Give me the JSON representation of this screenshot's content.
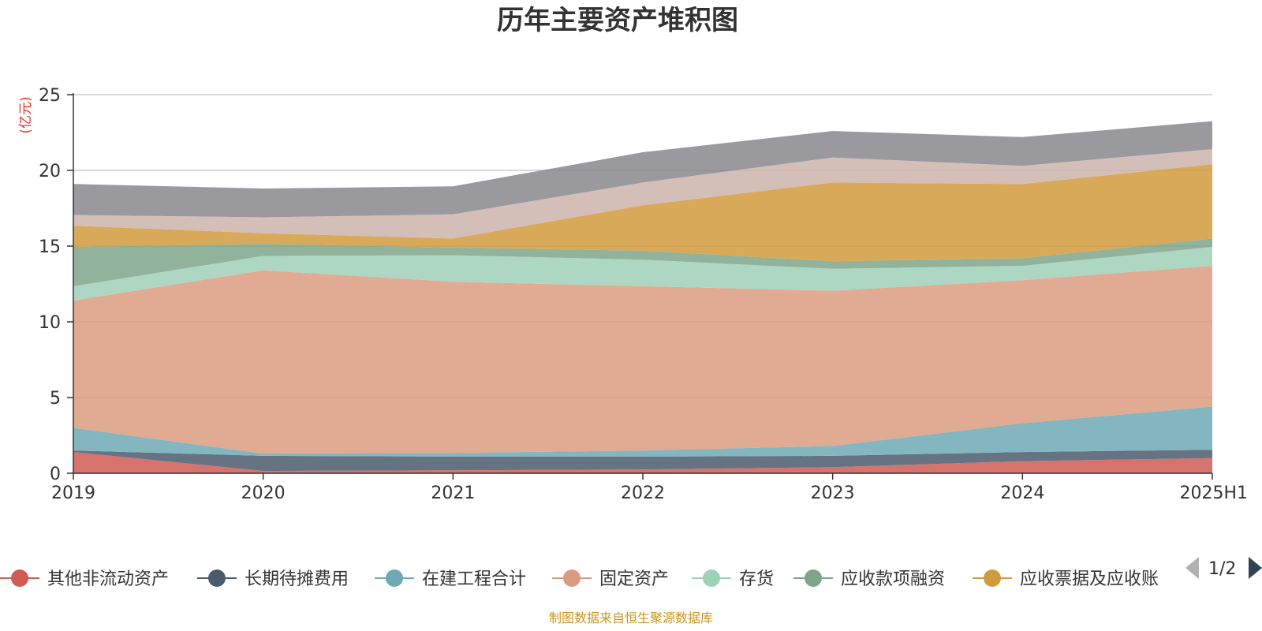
{
  "chart_data": {
    "type": "area",
    "stacked": true,
    "title": "历年主要资产堆积图",
    "unit_label": "(亿元)",
    "categories": [
      "2019",
      "2020",
      "2021",
      "2022",
      "2023",
      "2024",
      "2025H1"
    ],
    "ylim": [
      0,
      25
    ],
    "yticks": [
      0,
      5,
      10,
      15,
      20,
      25
    ],
    "grid": true,
    "series": [
      {
        "name": "其他非流动资产",
        "color": "#d05a54",
        "values": [
          1.4,
          0.15,
          0.2,
          0.25,
          0.4,
          0.8,
          1.0
        ]
      },
      {
        "name": "长期待摊费用",
        "color": "#4a5b6c",
        "values": [
          0.1,
          1.0,
          0.9,
          0.85,
          0.75,
          0.6,
          0.55
        ]
      },
      {
        "name": "在建工程合计",
        "color": "#6fa9b5",
        "values": [
          1.5,
          0.15,
          0.25,
          0.4,
          0.65,
          1.9,
          2.85
        ]
      },
      {
        "name": "固定资产",
        "color": "#dc9b80",
        "values": [
          8.4,
          12.1,
          11.3,
          10.85,
          10.25,
          9.45,
          9.3
        ]
      },
      {
        "name": "存货",
        "color": "#9fd0b8",
        "values": [
          0.95,
          0.95,
          1.75,
          1.75,
          1.45,
          0.95,
          1.25
        ]
      },
      {
        "name": "应收款项融资",
        "color": "#7ea48a",
        "values": [
          2.6,
          0.8,
          0.5,
          0.6,
          0.5,
          0.5,
          0.55
        ]
      },
      {
        "name": "应收票据及应收账",
        "color": "#d19a3c",
        "values": [
          1.4,
          0.7,
          0.6,
          3.0,
          5.2,
          4.9,
          4.9
        ]
      },
      {
        "name": "",
        "color": "#cbb3ab",
        "values": [
          0.7,
          1.05,
          1.6,
          1.5,
          1.65,
          1.2,
          1.0
        ]
      },
      {
        "name": "",
        "color": "#87878d",
        "values": [
          2.05,
          1.9,
          1.85,
          2.0,
          1.75,
          1.9,
          1.85
        ]
      }
    ]
  },
  "legend": {
    "page_indicator": "1/2",
    "prev_icon": "triangle-left-icon",
    "next_icon": "triangle-right-icon"
  },
  "footer": {
    "source": "制图数据来自恒生聚源数据库"
  }
}
